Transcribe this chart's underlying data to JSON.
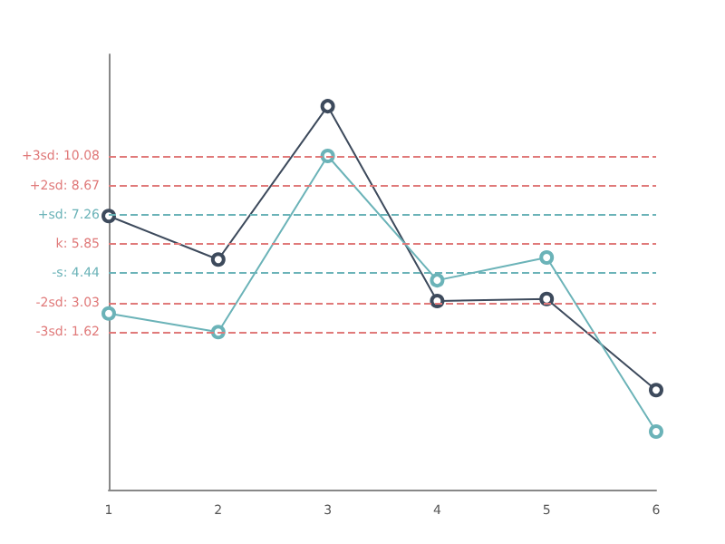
{
  "chart_data": {
    "type": "line",
    "categories": [
      "1",
      "2",
      "3",
      "4",
      "5",
      "6"
    ],
    "series": [
      {
        "color": "#3d4a5c",
        "values": [
          7.2,
          5.1,
          12.5,
          3.1,
          3.2,
          -1.2
        ]
      },
      {
        "color": "#6bb3b8",
        "values": [
          2.5,
          1.6,
          10.1,
          4.1,
          5.2,
          -3.2
        ]
      }
    ],
    "ylim": [
      -6,
      15
    ],
    "tick_labels": "x",
    "grid": false,
    "marker": "circle",
    "line_style": "solid",
    "ref_lines": [
      {
        "axis": "y",
        "value": 10.08,
        "label": "+3sd: 10.08",
        "color": "#e07a7a",
        "line_style": "dashed"
      },
      {
        "axis": "y",
        "value": 8.67,
        "label": "+2sd: 8.67",
        "color": "#e07a7a",
        "line_style": "dashed"
      },
      {
        "axis": "y",
        "value": 7.26,
        "label": "+sd: 7.26",
        "color": "#6bb3b8",
        "line_style": "dashed"
      },
      {
        "axis": "y",
        "value": 5.85,
        "label": "k: 5.85",
        "color": "#e07a7a",
        "line_style": "dashed"
      },
      {
        "axis": "y",
        "value": 4.44,
        "label": "-s: 4.44",
        "color": "#6bb3b8",
        "line_style": "dashed"
      },
      {
        "axis": "y",
        "value": 3.03,
        "label": "-2sd: 3.03",
        "color": "#e07a7a",
        "line_style": "dashed"
      },
      {
        "axis": "y",
        "value": 1.62,
        "label": "-3sd: 1.62",
        "color": "#e07a7a",
        "line_style": "dashed"
      }
    ]
  }
}
